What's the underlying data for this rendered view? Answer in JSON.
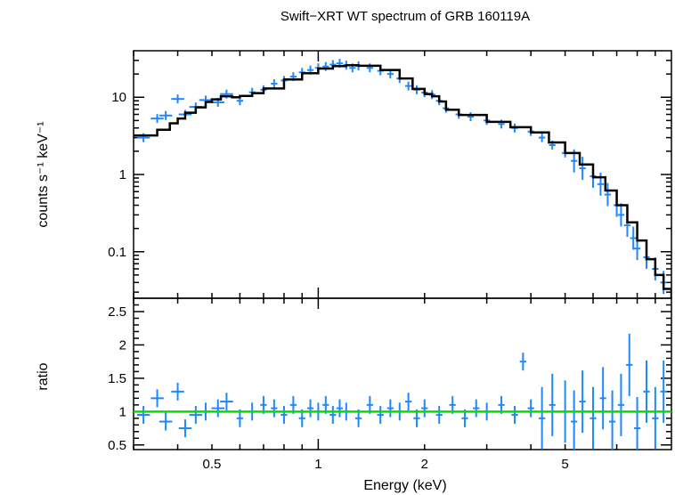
{
  "colors": {
    "data": "#1e88ff",
    "model": "#000000",
    "ratio_ref": "#00e000",
    "axes": "#000000"
  },
  "chart_data": [
    {
      "type": "step-scatter",
      "panel": "spectrum",
      "title": "Swift−XRT WT spectrum of GRB 160119A",
      "xlabel": "",
      "ylabel": "counts s⁻¹ keV⁻¹",
      "xscale": "log",
      "yscale": "log",
      "xlim": [
        0.3,
        10
      ],
      "ylim": [
        0.025,
        40
      ],
      "yticks": [
        0.1,
        1,
        10
      ],
      "ytick_labels": [
        "0.1",
        "1",
        "10"
      ],
      "series": [
        {
          "kind": "model-step",
          "points": [
            [
              0.3,
              3.2
            ],
            [
              0.35,
              3.8
            ],
            [
              0.38,
              4.6
            ],
            [
              0.4,
              5.3
            ],
            [
              0.42,
              6.3
            ],
            [
              0.45,
              7.4
            ],
            [
              0.48,
              8.7
            ],
            [
              0.5,
              9.4
            ],
            [
              0.53,
              10.3
            ],
            [
              0.57,
              10.0
            ],
            [
              0.6,
              10.4
            ],
            [
              0.65,
              11.3
            ],
            [
              0.7,
              13.0
            ],
            [
              0.8,
              17.0
            ],
            [
              0.9,
              20.5
            ],
            [
              1.0,
              23.5
            ],
            [
              1.1,
              25.3
            ],
            [
              1.2,
              26.0
            ],
            [
              1.3,
              25.6
            ],
            [
              1.5,
              22.5
            ],
            [
              1.7,
              17.5
            ],
            [
              1.85,
              12.8
            ],
            [
              2.0,
              11.0
            ],
            [
              2.1,
              10.3
            ],
            [
              2.2,
              8.8
            ],
            [
              2.3,
              6.9
            ],
            [
              2.5,
              5.9
            ],
            [
              3.0,
              4.8
            ],
            [
              3.5,
              4.1
            ],
            [
              4.0,
              3.5
            ],
            [
              4.5,
              2.6
            ],
            [
              5.0,
              1.9
            ],
            [
              5.5,
              1.35
            ],
            [
              6.0,
              0.92
            ],
            [
              6.5,
              0.62
            ],
            [
              7.0,
              0.4
            ],
            [
              7.5,
              0.24
            ],
            [
              8.0,
              0.14
            ],
            [
              8.5,
              0.08
            ],
            [
              9.0,
              0.05
            ],
            [
              9.5,
              0.033
            ],
            [
              10.0,
              0.025
            ]
          ]
        },
        {
          "kind": "data",
          "points": [
            [
              0.32,
              3.0
            ],
            [
              0.35,
              5.3
            ],
            [
              0.37,
              5.8
            ],
            [
              0.4,
              9.5
            ],
            [
              0.42,
              6.0
            ],
            [
              0.45,
              7.5
            ],
            [
              0.48,
              9.2
            ],
            [
              0.52,
              8.6
            ],
            [
              0.55,
              11.0
            ],
            [
              0.6,
              9.0
            ],
            [
              0.65,
              11.6
            ],
            [
              0.7,
              12.5
            ],
            [
              0.75,
              15.0
            ],
            [
              0.8,
              16.5
            ],
            [
              0.85,
              18.5
            ],
            [
              0.9,
              21.0
            ],
            [
              0.95,
              22.5
            ],
            [
              1.0,
              24.0
            ],
            [
              1.05,
              25.0
            ],
            [
              1.1,
              26.5
            ],
            [
              1.15,
              27.5
            ],
            [
              1.2,
              26.0
            ],
            [
              1.25,
              24.0
            ],
            [
              1.3,
              25.5
            ],
            [
              1.4,
              24.0
            ],
            [
              1.5,
              22.0
            ],
            [
              1.6,
              20.0
            ],
            [
              1.7,
              17.5
            ],
            [
              1.8,
              14.0
            ],
            [
              1.9,
              12.5
            ],
            [
              2.0,
              11.5
            ],
            [
              2.1,
              10.8
            ],
            [
              2.2,
              9.0
            ],
            [
              2.3,
              7.2
            ],
            [
              2.5,
              6.0
            ],
            [
              2.7,
              5.6
            ],
            [
              3.0,
              5.0
            ],
            [
              3.3,
              4.5
            ],
            [
              3.6,
              4.0
            ],
            [
              4.0,
              3.6
            ],
            [
              4.3,
              3.0
            ],
            [
              4.6,
              2.4
            ],
            [
              5.0,
              1.9
            ],
            [
              5.3,
              1.5
            ],
            [
              5.6,
              1.2
            ],
            [
              6.0,
              0.95
            ],
            [
              6.3,
              0.75
            ],
            [
              6.6,
              0.55
            ],
            [
              7.0,
              0.4
            ],
            [
              7.2,
              0.3
            ],
            [
              7.5,
              0.22
            ],
            [
              7.8,
              0.15
            ],
            [
              8.0,
              0.11
            ],
            [
              8.5,
              0.085
            ],
            [
              9.0,
              0.06
            ],
            [
              9.5,
              0.04
            ]
          ]
        }
      ]
    },
    {
      "type": "scatter",
      "panel": "ratio",
      "xlabel": "Energy (keV)",
      "ylabel": "ratio",
      "xscale": "log",
      "xlim": [
        0.3,
        10
      ],
      "ylim": [
        0.43,
        2.7
      ],
      "xticks": [
        0.5,
        1,
        2,
        5
      ],
      "xtick_labels": [
        "0.5",
        "1",
        "2",
        "5"
      ],
      "yticks": [
        0.5,
        1,
        1.5,
        2,
        2.5
      ],
      "ytick_labels": [
        "0.5",
        "1",
        "1.5",
        "2",
        "2.5"
      ],
      "reference_line": 1,
      "series": [
        {
          "kind": "data",
          "points": [
            [
              0.32,
              0.95
            ],
            [
              0.35,
              1.2
            ],
            [
              0.37,
              0.85
            ],
            [
              0.4,
              1.3
            ],
            [
              0.42,
              0.75
            ],
            [
              0.45,
              0.95
            ],
            [
              0.48,
              1.0
            ],
            [
              0.52,
              1.05
            ],
            [
              0.55,
              1.15
            ],
            [
              0.6,
              0.9
            ],
            [
              0.65,
              1.0
            ],
            [
              0.7,
              1.1
            ],
            [
              0.75,
              1.05
            ],
            [
              0.8,
              0.95
            ],
            [
              0.85,
              1.1
            ],
            [
              0.9,
              0.9
            ],
            [
              0.95,
              1.05
            ],
            [
              1.0,
              1.0
            ],
            [
              1.05,
              1.1
            ],
            [
              1.1,
              0.95
            ],
            [
              1.15,
              1.05
            ],
            [
              1.2,
              1.0
            ],
            [
              1.3,
              0.9
            ],
            [
              1.4,
              1.1
            ],
            [
              1.5,
              0.95
            ],
            [
              1.6,
              1.05
            ],
            [
              1.7,
              1.0
            ],
            [
              1.8,
              1.15
            ],
            [
              1.9,
              0.9
            ],
            [
              2.0,
              1.05
            ],
            [
              2.2,
              0.95
            ],
            [
              2.4,
              1.1
            ],
            [
              2.6,
              0.9
            ],
            [
              2.8,
              1.05
            ],
            [
              3.0,
              1.0
            ],
            [
              3.3,
              1.1
            ],
            [
              3.6,
              0.95
            ],
            [
              3.8,
              1.75
            ],
            [
              4.0,
              1.05
            ],
            [
              4.3,
              0.9
            ],
            [
              4.6,
              1.1
            ],
            [
              5.0,
              1.0
            ],
            [
              5.3,
              0.85
            ],
            [
              5.6,
              1.15
            ],
            [
              6.0,
              0.9
            ],
            [
              6.4,
              1.2
            ],
            [
              6.8,
              0.85
            ],
            [
              7.2,
              1.1
            ],
            [
              7.6,
              1.7
            ],
            [
              8.0,
              0.75
            ],
            [
              8.5,
              1.3
            ],
            [
              9.0,
              0.9
            ],
            [
              9.5,
              1.3
            ]
          ]
        }
      ]
    }
  ]
}
